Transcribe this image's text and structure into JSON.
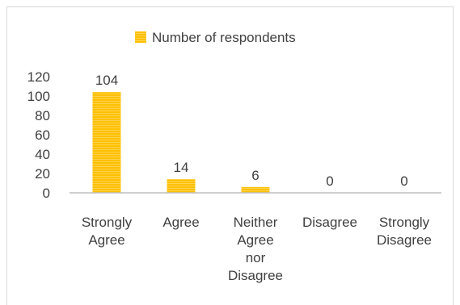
{
  "chart_data": {
    "type": "bar",
    "title": "",
    "xlabel": "",
    "ylabel": "",
    "categories": [
      [
        "Strongly",
        "Agree"
      ],
      [
        "Agree"
      ],
      [
        "Neither",
        "Agree",
        "nor",
        "Disagree"
      ],
      [
        "Disagree"
      ],
      [
        "Strongly",
        "Disagree"
      ]
    ],
    "series": [
      {
        "name": "Number of respondents",
        "values": [
          104,
          14,
          6,
          0,
          0
        ],
        "color": "#FFC000"
      }
    ],
    "data_labels": [
      "104",
      "14",
      "6",
      "0",
      "0"
    ],
    "ylim": [
      0,
      120
    ],
    "yticks": [
      "0",
      "20",
      "40",
      "60",
      "80",
      "100",
      "120"
    ],
    "grid": false,
    "legend_position": "top",
    "axis_color": "#bfbfbf"
  }
}
